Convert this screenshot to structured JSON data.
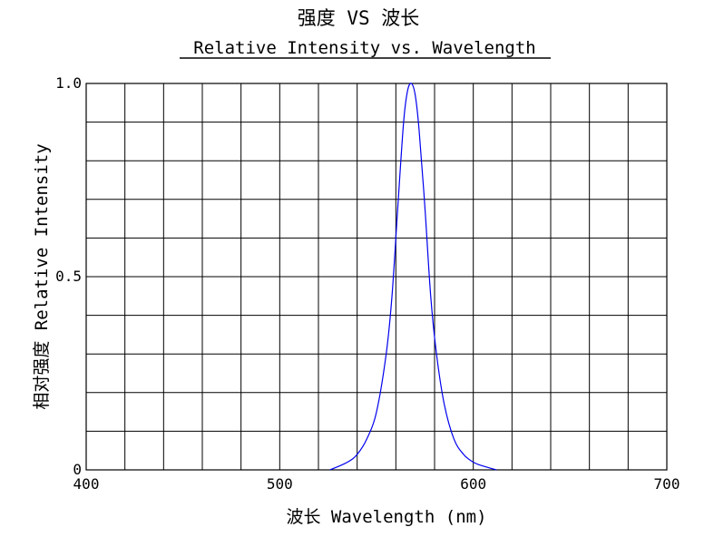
{
  "chart_data": {
    "type": "line",
    "title": "强度 VS 波长",
    "subtitle": "Relative Intensity vs. Wavelength",
    "xlabel": "波长 Wavelength (nm)",
    "ylabel": "相对强度 Relative Intensity",
    "xlim": [
      400,
      700
    ],
    "ylim": [
      0,
      1.0
    ],
    "x_tick_labels": [
      {
        "value": 400,
        "label": "400"
      },
      {
        "value": 500,
        "label": "500"
      },
      {
        "value": 600,
        "label": "600"
      },
      {
        "value": 700,
        "label": "700"
      }
    ],
    "y_tick_labels": [
      {
        "value": 0,
        "label": "0"
      },
      {
        "value": 0.5,
        "label": "0.5"
      },
      {
        "value": 1.0,
        "label": "1.0"
      }
    ],
    "x_grid_step": 20,
    "y_grid_step": 0.1,
    "grid": true,
    "series": [
      {
        "color": "#0000ee",
        "x": [
          526,
          535,
          540,
          545,
          550,
          555,
          558,
          561,
          564,
          566,
          568,
          570,
          572,
          575,
          578,
          581,
          585,
          590,
          595,
          600,
          605,
          612
        ],
        "y": [
          0,
          0.02,
          0.04,
          0.08,
          0.15,
          0.3,
          0.45,
          0.68,
          0.9,
          0.98,
          1.0,
          0.97,
          0.88,
          0.68,
          0.45,
          0.3,
          0.17,
          0.08,
          0.04,
          0.02,
          0.01,
          0
        ]
      }
    ]
  }
}
